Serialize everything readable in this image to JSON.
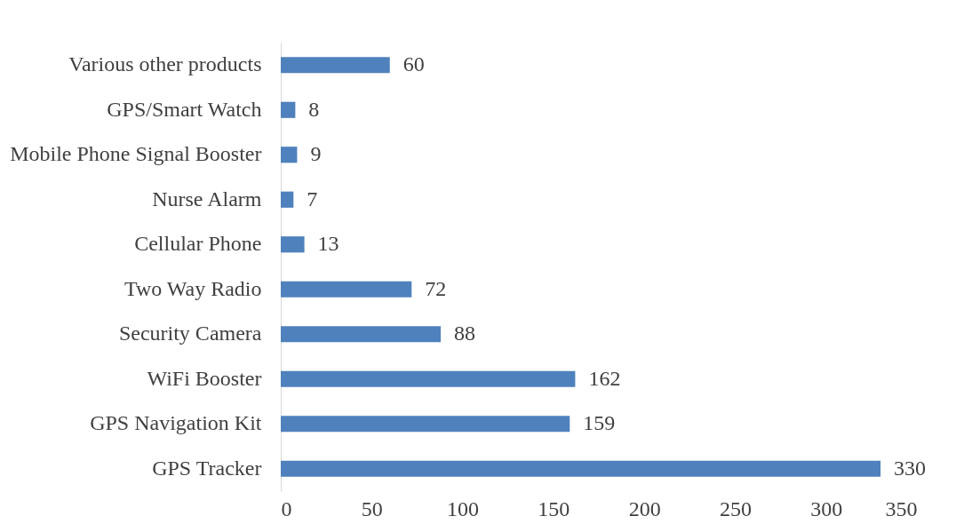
{
  "chart_data": {
    "type": "bar",
    "orientation": "horizontal",
    "categories": [
      "Various other products",
      "GPS/Smart Watch",
      "Mobile Phone Signal Booster",
      "Nurse Alarm",
      "Cellular Phone",
      "Two Way Radio",
      "Security Camera",
      "WiFi Booster",
      "GPS Navigation Kit",
      "GPS Tracker"
    ],
    "values": [
      60,
      8,
      9,
      7,
      13,
      72,
      88,
      162,
      159,
      330
    ],
    "color": "#4f81bd",
    "xlim": [
      0,
      350
    ],
    "xticks": [
      0,
      50,
      100,
      150,
      200,
      250,
      300,
      350
    ],
    "data_labels": true,
    "grid": false
  }
}
